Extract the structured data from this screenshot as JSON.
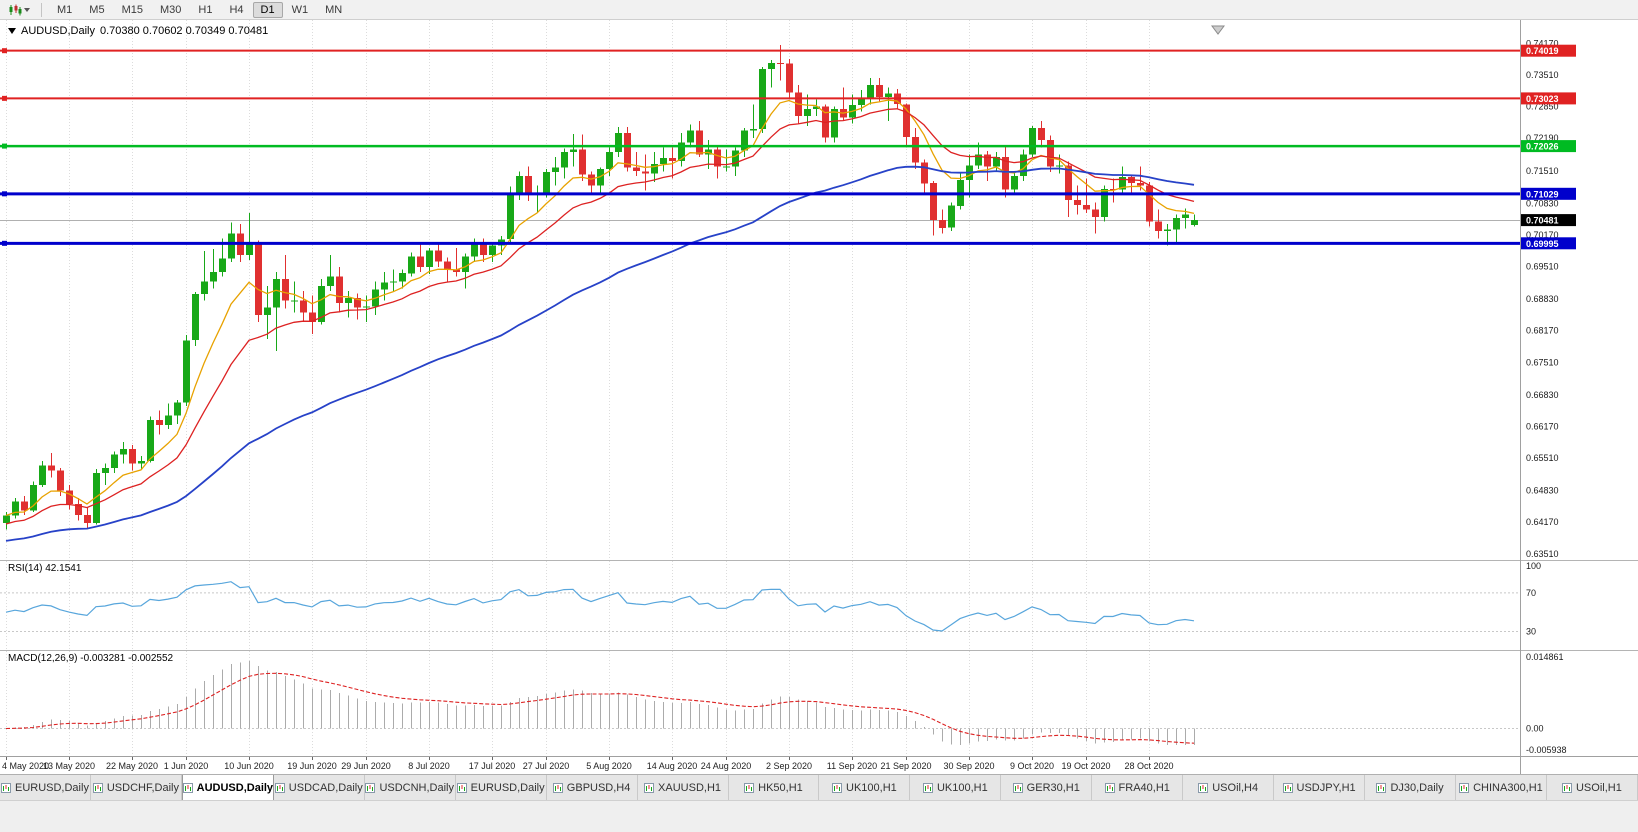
{
  "toolbar": {
    "timeframes": [
      "M1",
      "M5",
      "M15",
      "M30",
      "H1",
      "H4",
      "D1",
      "W1",
      "MN"
    ],
    "active_timeframe": "D1"
  },
  "header": {
    "title": "AUDUSD,Daily",
    "ohlc": "0.70380 0.70602 0.70349 0.70481"
  },
  "rsi": {
    "label": "RSI(14) 42.1541",
    "value": 42.1541,
    "axis_labels": [
      "100",
      "70",
      "30"
    ],
    "levels": [
      70,
      30
    ]
  },
  "macd": {
    "label": "MACD(12,26,9) -0.003281 -0.002552",
    "values": [
      -0.003281,
      -0.002552
    ],
    "axis_top": "0.014861",
    "axis_zero": "0.00",
    "axis_bottom": "-0.005938"
  },
  "colors": {
    "candle_up": "#18A818",
    "candle_down": "#E03030",
    "rsi_line": "#58A6DC",
    "macd_hist": "#ABABAB",
    "macd_signal": "#DD2222",
    "price_line": "#B0B0B0",
    "current_label_bg": "#000000",
    "grid": "#DCDCDC"
  },
  "chart_data": {
    "type": "candlestick",
    "symbol": "AUDUSD",
    "period": "Daily",
    "price_max": 0.7466,
    "price_min": 0.6338,
    "current_price": 0.70481,
    "current_price_label": "0.70481",
    "y_axis_labels": [
      "0.74170",
      "0.73510",
      "0.72850",
      "0.72190",
      "0.71510",
      "0.70830",
      "0.70170",
      "0.69510",
      "0.68830",
      "0.68170",
      "0.67510",
      "0.66830",
      "0.66170",
      "0.65510",
      "0.64830",
      "0.64170",
      "0.63510"
    ],
    "hlines": [
      {
        "value": 0.74019,
        "label": "0.74019",
        "color": "#E02222",
        "width": 2
      },
      {
        "value": 0.73023,
        "label": "0.73023",
        "color": "#E02222",
        "width": 2
      },
      {
        "value": 0.72026,
        "label": "0.72026",
        "color": "#00BB22",
        "width": 2.5
      },
      {
        "value": 0.71029,
        "label": "0.71029",
        "color": "#0000CC",
        "width": 3
      },
      {
        "value": 0.69995,
        "label": "0.69995",
        "color": "#0000CC",
        "width": 3
      }
    ],
    "moving_averages": [
      {
        "period": 8,
        "color": "#E8A200",
        "width": 1.3,
        "seed_offset": 0
      },
      {
        "period": 17,
        "color": "#DD2222",
        "width": 1.3,
        "seed_offset": -0.002
      },
      {
        "period": 55,
        "color": "#2742C8",
        "width": 1.8,
        "seed_offset": -0.0055
      }
    ],
    "indicators": {
      "rsi_period": 14,
      "macd": [
        12,
        26,
        9
      ]
    },
    "x_ticks": [
      {
        "i": 0,
        "label": "4 May 2020"
      },
      {
        "i": 7,
        "label": "13 May 2020"
      },
      {
        "i": 14,
        "label": "22 May 2020"
      },
      {
        "i": 20,
        "label": "1 Jun 2020"
      },
      {
        "i": 27,
        "label": "10 Jun 2020"
      },
      {
        "i": 34,
        "label": "19 Jun 2020"
      },
      {
        "i": 40,
        "label": "29 Jun 2020"
      },
      {
        "i": 47,
        "label": "8 Jul 2020"
      },
      {
        "i": 54,
        "label": "17 Jul 2020"
      },
      {
        "i": 60,
        "label": "27 Jul 2020"
      },
      {
        "i": 67,
        "label": "5 Aug 2020"
      },
      {
        "i": 74,
        "label": "14 Aug 2020"
      },
      {
        "i": 80,
        "label": "24 Aug 2020"
      },
      {
        "i": 87,
        "label": "2 Sep 2020"
      },
      {
        "i": 94,
        "label": "11 Sep 2020"
      },
      {
        "i": 100,
        "label": "21 Sep 2020"
      },
      {
        "i": 107,
        "label": "30 Sep 2020"
      },
      {
        "i": 114,
        "label": "9 Oct 2020"
      },
      {
        "i": 120,
        "label": "19 Oct 2020"
      },
      {
        "i": 127,
        "label": "28 Oct 2020"
      }
    ],
    "candles": [
      [
        0.6415,
        0.6438,
        0.6402,
        0.6431
      ],
      [
        0.6431,
        0.6468,
        0.6425,
        0.646
      ],
      [
        0.646,
        0.6472,
        0.6432,
        0.6441
      ],
      [
        0.6441,
        0.6502,
        0.6438,
        0.6495
      ],
      [
        0.6495,
        0.6545,
        0.649,
        0.6535
      ],
      [
        0.6535,
        0.6561,
        0.651,
        0.6525
      ],
      [
        0.6525,
        0.653,
        0.6472,
        0.6483
      ],
      [
        0.6483,
        0.6495,
        0.6443,
        0.6455
      ],
      [
        0.6455,
        0.6468,
        0.642,
        0.6432
      ],
      [
        0.6432,
        0.6448,
        0.6403,
        0.6415
      ],
      [
        0.6415,
        0.6528,
        0.6412,
        0.652
      ],
      [
        0.652,
        0.654,
        0.6495,
        0.653
      ],
      [
        0.653,
        0.6565,
        0.652,
        0.6558
      ],
      [
        0.6558,
        0.6585,
        0.654,
        0.657
      ],
      [
        0.657,
        0.6578,
        0.6525,
        0.654
      ],
      [
        0.654,
        0.6555,
        0.6528,
        0.6545
      ],
      [
        0.6545,
        0.6638,
        0.6542,
        0.663
      ],
      [
        0.663,
        0.665,
        0.66,
        0.662
      ],
      [
        0.662,
        0.6665,
        0.6612,
        0.664
      ],
      [
        0.664,
        0.6672,
        0.6622,
        0.6667
      ],
      [
        0.6667,
        0.6808,
        0.666,
        0.6797
      ],
      [
        0.6797,
        0.6898,
        0.6785,
        0.6894
      ],
      [
        0.6894,
        0.6983,
        0.688,
        0.692
      ],
      [
        0.692,
        0.6988,
        0.6905,
        0.694
      ],
      [
        0.694,
        0.701,
        0.693,
        0.6968
      ],
      [
        0.6968,
        0.7043,
        0.696,
        0.702
      ],
      [
        0.702,
        0.704,
        0.696,
        0.6975
      ],
      [
        0.6975,
        0.7063,
        0.6965,
        0.6998
      ],
      [
        0.6998,
        0.7005,
        0.6835,
        0.685
      ],
      [
        0.685,
        0.691,
        0.68,
        0.6865
      ],
      [
        0.6865,
        0.694,
        0.6775,
        0.6925
      ],
      [
        0.6925,
        0.6975,
        0.6863,
        0.688
      ],
      [
        0.688,
        0.692,
        0.6855,
        0.688
      ],
      [
        0.688,
        0.69,
        0.6838,
        0.6855
      ],
      [
        0.6855,
        0.689,
        0.681,
        0.6835
      ],
      [
        0.6835,
        0.6925,
        0.683,
        0.691
      ],
      [
        0.691,
        0.6975,
        0.69,
        0.693
      ],
      [
        0.693,
        0.695,
        0.6855,
        0.6875
      ],
      [
        0.6875,
        0.69,
        0.6845,
        0.6885
      ],
      [
        0.6885,
        0.6895,
        0.684,
        0.6865
      ],
      [
        0.6865,
        0.689,
        0.6835,
        0.6868
      ],
      [
        0.6868,
        0.692,
        0.685,
        0.6903
      ],
      [
        0.6903,
        0.694,
        0.688,
        0.6918
      ],
      [
        0.6918,
        0.6945,
        0.69,
        0.692
      ],
      [
        0.692,
        0.6945,
        0.6905,
        0.6937
      ],
      [
        0.6937,
        0.698,
        0.693,
        0.6972
      ],
      [
        0.6972,
        0.6998,
        0.694,
        0.695
      ],
      [
        0.695,
        0.699,
        0.6935,
        0.6985
      ],
      [
        0.6985,
        0.7,
        0.695,
        0.6962
      ],
      [
        0.6962,
        0.697,
        0.692,
        0.6945
      ],
      [
        0.6945,
        0.699,
        0.693,
        0.694
      ],
      [
        0.694,
        0.6978,
        0.6905,
        0.6972
      ],
      [
        0.6972,
        0.701,
        0.696,
        0.7002
      ],
      [
        0.7002,
        0.701,
        0.696,
        0.6975
      ],
      [
        0.6975,
        0.7,
        0.696,
        0.6995
      ],
      [
        0.6995,
        0.7015,
        0.6975,
        0.7008
      ],
      [
        0.7008,
        0.7118,
        0.7,
        0.7105
      ],
      [
        0.7105,
        0.715,
        0.709,
        0.714
      ],
      [
        0.714,
        0.716,
        0.7088,
        0.71
      ],
      [
        0.71,
        0.712,
        0.7063,
        0.7105
      ],
      [
        0.7105,
        0.7155,
        0.7095,
        0.7148
      ],
      [
        0.7148,
        0.718,
        0.712,
        0.7158
      ],
      [
        0.7158,
        0.7198,
        0.7135,
        0.719
      ],
      [
        0.719,
        0.7228,
        0.716,
        0.7195
      ],
      [
        0.7195,
        0.7227,
        0.713,
        0.7143
      ],
      [
        0.7143,
        0.715,
        0.71,
        0.712
      ],
      [
        0.712,
        0.7158,
        0.7105,
        0.7155
      ],
      [
        0.7155,
        0.72,
        0.714,
        0.719
      ],
      [
        0.719,
        0.7242,
        0.718,
        0.723
      ],
      [
        0.723,
        0.7243,
        0.715,
        0.7158
      ],
      [
        0.7158,
        0.719,
        0.714,
        0.715
      ],
      [
        0.715,
        0.7185,
        0.711,
        0.7145
      ],
      [
        0.7145,
        0.719,
        0.7128,
        0.7165
      ],
      [
        0.7165,
        0.72,
        0.715,
        0.7178
      ],
      [
        0.7178,
        0.72,
        0.7135,
        0.7172
      ],
      [
        0.7172,
        0.723,
        0.716,
        0.721
      ],
      [
        0.721,
        0.7248,
        0.72,
        0.7235
      ],
      [
        0.7235,
        0.7255,
        0.718,
        0.7185
      ],
      [
        0.7185,
        0.7215,
        0.7155,
        0.7195
      ],
      [
        0.7195,
        0.7205,
        0.7135,
        0.716
      ],
      [
        0.716,
        0.7195,
        0.715,
        0.716
      ],
      [
        0.716,
        0.72,
        0.714,
        0.7193
      ],
      [
        0.7193,
        0.724,
        0.718,
        0.7235
      ],
      [
        0.7235,
        0.729,
        0.722,
        0.7238
      ],
      [
        0.7238,
        0.7368,
        0.723,
        0.7364
      ],
      [
        0.7364,
        0.7382,
        0.7325,
        0.7376
      ],
      [
        0.7376,
        0.7414,
        0.734,
        0.7375
      ],
      [
        0.7375,
        0.7385,
        0.73,
        0.7315
      ],
      [
        0.7315,
        0.733,
        0.725,
        0.7265
      ],
      [
        0.7265,
        0.731,
        0.7245,
        0.728
      ],
      [
        0.728,
        0.73,
        0.7265,
        0.7285
      ],
      [
        0.7285,
        0.729,
        0.721,
        0.722
      ],
      [
        0.722,
        0.7285,
        0.721,
        0.728
      ],
      [
        0.728,
        0.7325,
        0.7255,
        0.7262
      ],
      [
        0.7262,
        0.731,
        0.725,
        0.7288
      ],
      [
        0.7288,
        0.732,
        0.7275,
        0.7302
      ],
      [
        0.7302,
        0.7345,
        0.729,
        0.733
      ],
      [
        0.733,
        0.7345,
        0.7295,
        0.7305
      ],
      [
        0.7305,
        0.7325,
        0.7255,
        0.7312
      ],
      [
        0.7312,
        0.7322,
        0.728,
        0.729
      ],
      [
        0.729,
        0.7292,
        0.72,
        0.7222
      ],
      [
        0.7222,
        0.724,
        0.7155,
        0.7168
      ],
      [
        0.7168,
        0.7175,
        0.7105,
        0.7125
      ],
      [
        0.7125,
        0.713,
        0.7016,
        0.7048
      ],
      [
        0.7048,
        0.707,
        0.702,
        0.7032
      ],
      [
        0.7032,
        0.7085,
        0.7025,
        0.7078
      ],
      [
        0.7078,
        0.7145,
        0.707,
        0.7132
      ],
      [
        0.7132,
        0.7185,
        0.7095,
        0.7162
      ],
      [
        0.7162,
        0.721,
        0.7155,
        0.7185
      ],
      [
        0.7185,
        0.7192,
        0.713,
        0.716
      ],
      [
        0.716,
        0.719,
        0.715,
        0.718
      ],
      [
        0.718,
        0.7205,
        0.7095,
        0.7112
      ],
      [
        0.7112,
        0.715,
        0.7105,
        0.714
      ],
      [
        0.714,
        0.7195,
        0.713,
        0.7185
      ],
      [
        0.7185,
        0.7245,
        0.718,
        0.724
      ],
      [
        0.724,
        0.7255,
        0.72,
        0.7215
      ],
      [
        0.7215,
        0.7225,
        0.7148,
        0.716
      ],
      [
        0.716,
        0.7185,
        0.7145,
        0.7162
      ],
      [
        0.7162,
        0.717,
        0.7055,
        0.709
      ],
      [
        0.709,
        0.712,
        0.706,
        0.708
      ],
      [
        0.708,
        0.7135,
        0.7063,
        0.707
      ],
      [
        0.707,
        0.7085,
        0.702,
        0.7055
      ],
      [
        0.7055,
        0.712,
        0.7045,
        0.7113
      ],
      [
        0.7113,
        0.7135,
        0.7085,
        0.7112
      ],
      [
        0.7112,
        0.716,
        0.71,
        0.7138
      ],
      [
        0.7138,
        0.7143,
        0.7105,
        0.7125
      ],
      [
        0.7125,
        0.716,
        0.711,
        0.712
      ],
      [
        0.712,
        0.7128,
        0.7035,
        0.7045
      ],
      [
        0.7045,
        0.707,
        0.701,
        0.7025
      ],
      [
        0.7025,
        0.704,
        0.6995,
        0.7028
      ],
      [
        0.7028,
        0.706,
        0.7,
        0.7052
      ],
      [
        0.7052,
        0.7072,
        0.703,
        0.706
      ],
      [
        0.7038,
        0.70602,
        0.70349,
        0.70481
      ]
    ]
  },
  "tabs": [
    {
      "label": "EURUSD,Daily",
      "active": false
    },
    {
      "label": "USDCHF,Daily",
      "active": false
    },
    {
      "label": "AUDUSD,Daily",
      "active": true
    },
    {
      "label": "USDCAD,Daily",
      "active": false
    },
    {
      "label": "USDCNH,Daily",
      "active": false
    },
    {
      "label": "EURUSD,Daily",
      "active": false
    },
    {
      "label": "GBPUSD,H4",
      "active": false
    },
    {
      "label": "XAUUSD,H1",
      "active": false
    },
    {
      "label": "HK50,H1",
      "active": false
    },
    {
      "label": "UK100,H1",
      "active": false
    },
    {
      "label": "UK100,H1",
      "active": false
    },
    {
      "label": "GER30,H1",
      "active": false
    },
    {
      "label": "FRA40,H1",
      "active": false
    },
    {
      "label": "USOil,H4",
      "active": false
    },
    {
      "label": "USDJPY,H1",
      "active": false
    },
    {
      "label": "DJ30,Daily",
      "active": false
    },
    {
      "label": "CHINA300,H1",
      "active": false
    },
    {
      "label": "USOil,H1",
      "active": false
    }
  ]
}
